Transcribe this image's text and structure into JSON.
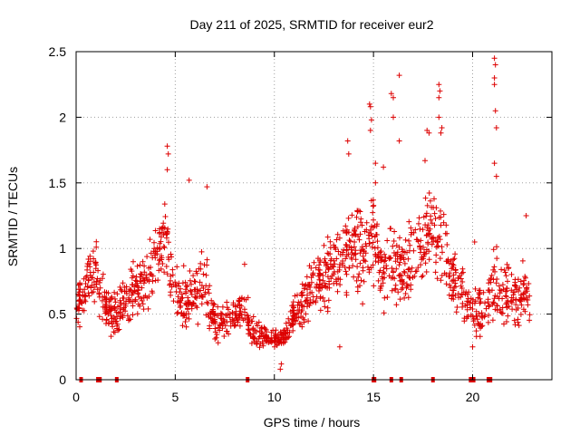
{
  "chart_data": {
    "type": "scatter",
    "title": "Day 211 of 2025, SRMTID for receiver eur2",
    "xlabel": "GPS time / hours",
    "ylabel": "SRMTID / TECUs",
    "xlim": [
      0,
      24
    ],
    "ylim": [
      0,
      2.5
    ],
    "x_ticks": [
      0,
      5,
      10,
      15,
      20
    ],
    "x_tick_labels": [
      "0",
      "5",
      "10",
      "15",
      "20"
    ],
    "y_ticks": [
      0,
      0.5,
      1,
      1.5,
      2,
      2.5
    ],
    "y_tick_labels": [
      "0",
      "0.5",
      "1",
      "1.5",
      "2",
      "2.5"
    ],
    "grid": true,
    "marker": "+",
    "series_color": "#dd0000",
    "trend_hours": [
      0,
      0.5,
      1,
      1.5,
      2,
      2.5,
      3,
      3.5,
      4,
      4.5,
      5,
      5.5,
      6,
      6.5,
      7,
      7.5,
      8,
      8.5,
      9,
      9.5,
      10,
      10.5,
      11,
      11.5,
      12,
      12.5,
      13,
      13.5,
      14,
      14.5,
      15,
      15.5,
      16,
      16.5,
      17,
      17.5,
      18,
      18.5,
      19,
      19.5,
      20,
      20.5,
      21,
      21.5,
      22,
      22.5,
      23
    ],
    "trend_values": [
      0.55,
      0.75,
      0.8,
      0.55,
      0.5,
      0.6,
      0.7,
      0.75,
      0.9,
      1.05,
      0.65,
      0.6,
      0.7,
      0.75,
      0.45,
      0.45,
      0.5,
      0.55,
      0.35,
      0.35,
      0.3,
      0.32,
      0.5,
      0.6,
      0.7,
      0.8,
      0.85,
      0.95,
      1.05,
      0.95,
      1.15,
      0.75,
      0.9,
      0.8,
      0.95,
      1.1,
      1.2,
      0.95,
      0.75,
      0.65,
      0.5,
      0.55,
      0.7,
      0.7,
      0.65,
      0.65,
      0.55
    ],
    "spread_values": [
      0.25,
      0.3,
      0.3,
      0.25,
      0.25,
      0.3,
      0.3,
      0.3,
      0.35,
      0.4,
      0.3,
      0.3,
      0.35,
      0.35,
      0.2,
      0.2,
      0.2,
      0.22,
      0.15,
      0.12,
      0.1,
      0.1,
      0.2,
      0.25,
      0.3,
      0.35,
      0.35,
      0.4,
      0.45,
      0.45,
      0.5,
      0.4,
      0.45,
      0.4,
      0.45,
      0.5,
      0.5,
      0.45,
      0.35,
      0.3,
      0.25,
      0.3,
      0.4,
      0.35,
      0.3,
      0.3,
      0.25
    ],
    "spike_points": [
      {
        "x": 4.6,
        "y": 1.78
      },
      {
        "x": 4.65,
        "y": 1.72
      },
      {
        "x": 4.6,
        "y": 1.6
      },
      {
        "x": 5.7,
        "y": 1.52
      },
      {
        "x": 6.6,
        "y": 1.47
      },
      {
        "x": 8.5,
        "y": 0.88
      },
      {
        "x": 13.7,
        "y": 1.82
      },
      {
        "x": 13.75,
        "y": 1.72
      },
      {
        "x": 14.8,
        "y": 2.1
      },
      {
        "x": 14.85,
        "y": 2.08
      },
      {
        "x": 14.9,
        "y": 1.98
      },
      {
        "x": 14.85,
        "y": 1.9
      },
      {
        "x": 15.1,
        "y": 1.65
      },
      {
        "x": 15.1,
        "y": 1.5
      },
      {
        "x": 15.5,
        "y": 1.62
      },
      {
        "x": 15.9,
        "y": 2.18
      },
      {
        "x": 16.0,
        "y": 2.15
      },
      {
        "x": 16.3,
        "y": 2.32
      },
      {
        "x": 16.0,
        "y": 2.0
      },
      {
        "x": 16.3,
        "y": 1.82
      },
      {
        "x": 17.7,
        "y": 1.9
      },
      {
        "x": 17.8,
        "y": 1.88
      },
      {
        "x": 17.6,
        "y": 1.67
      },
      {
        "x": 18.3,
        "y": 2.25
      },
      {
        "x": 18.35,
        "y": 2.2
      },
      {
        "x": 18.3,
        "y": 2.15
      },
      {
        "x": 18.3,
        "y": 2.0
      },
      {
        "x": 18.4,
        "y": 1.88
      },
      {
        "x": 18.45,
        "y": 1.92
      },
      {
        "x": 20.1,
        "y": 1.05
      },
      {
        "x": 21.1,
        "y": 2.45
      },
      {
        "x": 21.15,
        "y": 2.4
      },
      {
        "x": 21.1,
        "y": 2.3
      },
      {
        "x": 21.1,
        "y": 2.25
      },
      {
        "x": 21.15,
        "y": 2.05
      },
      {
        "x": 21.2,
        "y": 1.92
      },
      {
        "x": 21.1,
        "y": 1.65
      },
      {
        "x": 21.2,
        "y": 1.55
      },
      {
        "x": 22.7,
        "y": 1.25
      },
      {
        "x": 10.3,
        "y": 0.08
      },
      {
        "x": 10.35,
        "y": 0.12
      },
      {
        "x": 13.3,
        "y": 0.25
      },
      {
        "x": 20.0,
        "y": 0.25
      }
    ],
    "zero_points_hours": [
      0.25,
      1.1,
      1.2,
      2.05,
      8.65,
      15.0,
      15.05,
      15.9,
      16.4,
      18.0,
      19.9,
      20.05,
      20.8,
      20.9
    ]
  }
}
